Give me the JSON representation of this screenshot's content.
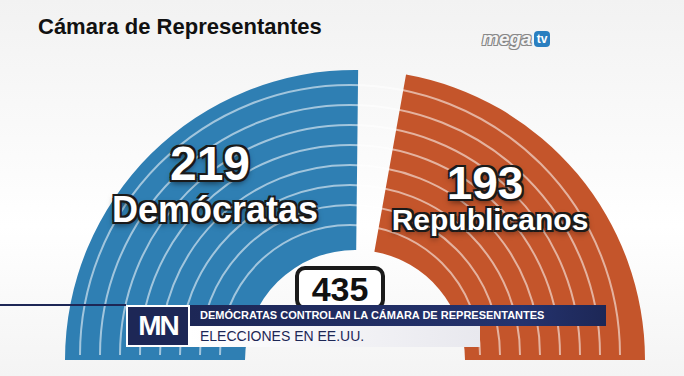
{
  "chart_data": {
    "type": "parliament",
    "title": "Cámara de Representantes",
    "categories": [
      "Demócratas",
      "Republicanos"
    ],
    "values": [
      219,
      193
    ],
    "colors": [
      "#2f7fb3",
      "#c4552b"
    ],
    "total": 435,
    "data_labels": true
  },
  "logos": {
    "channel": "mega",
    "channel_badge": "tv",
    "program": "MN"
  },
  "banner": {
    "headline": "DEMÓCRATAS CONTROLAN LA CÁMARA DE REPRESENTANTES",
    "subheadline": "ELECCIONES EN EE.UU."
  }
}
